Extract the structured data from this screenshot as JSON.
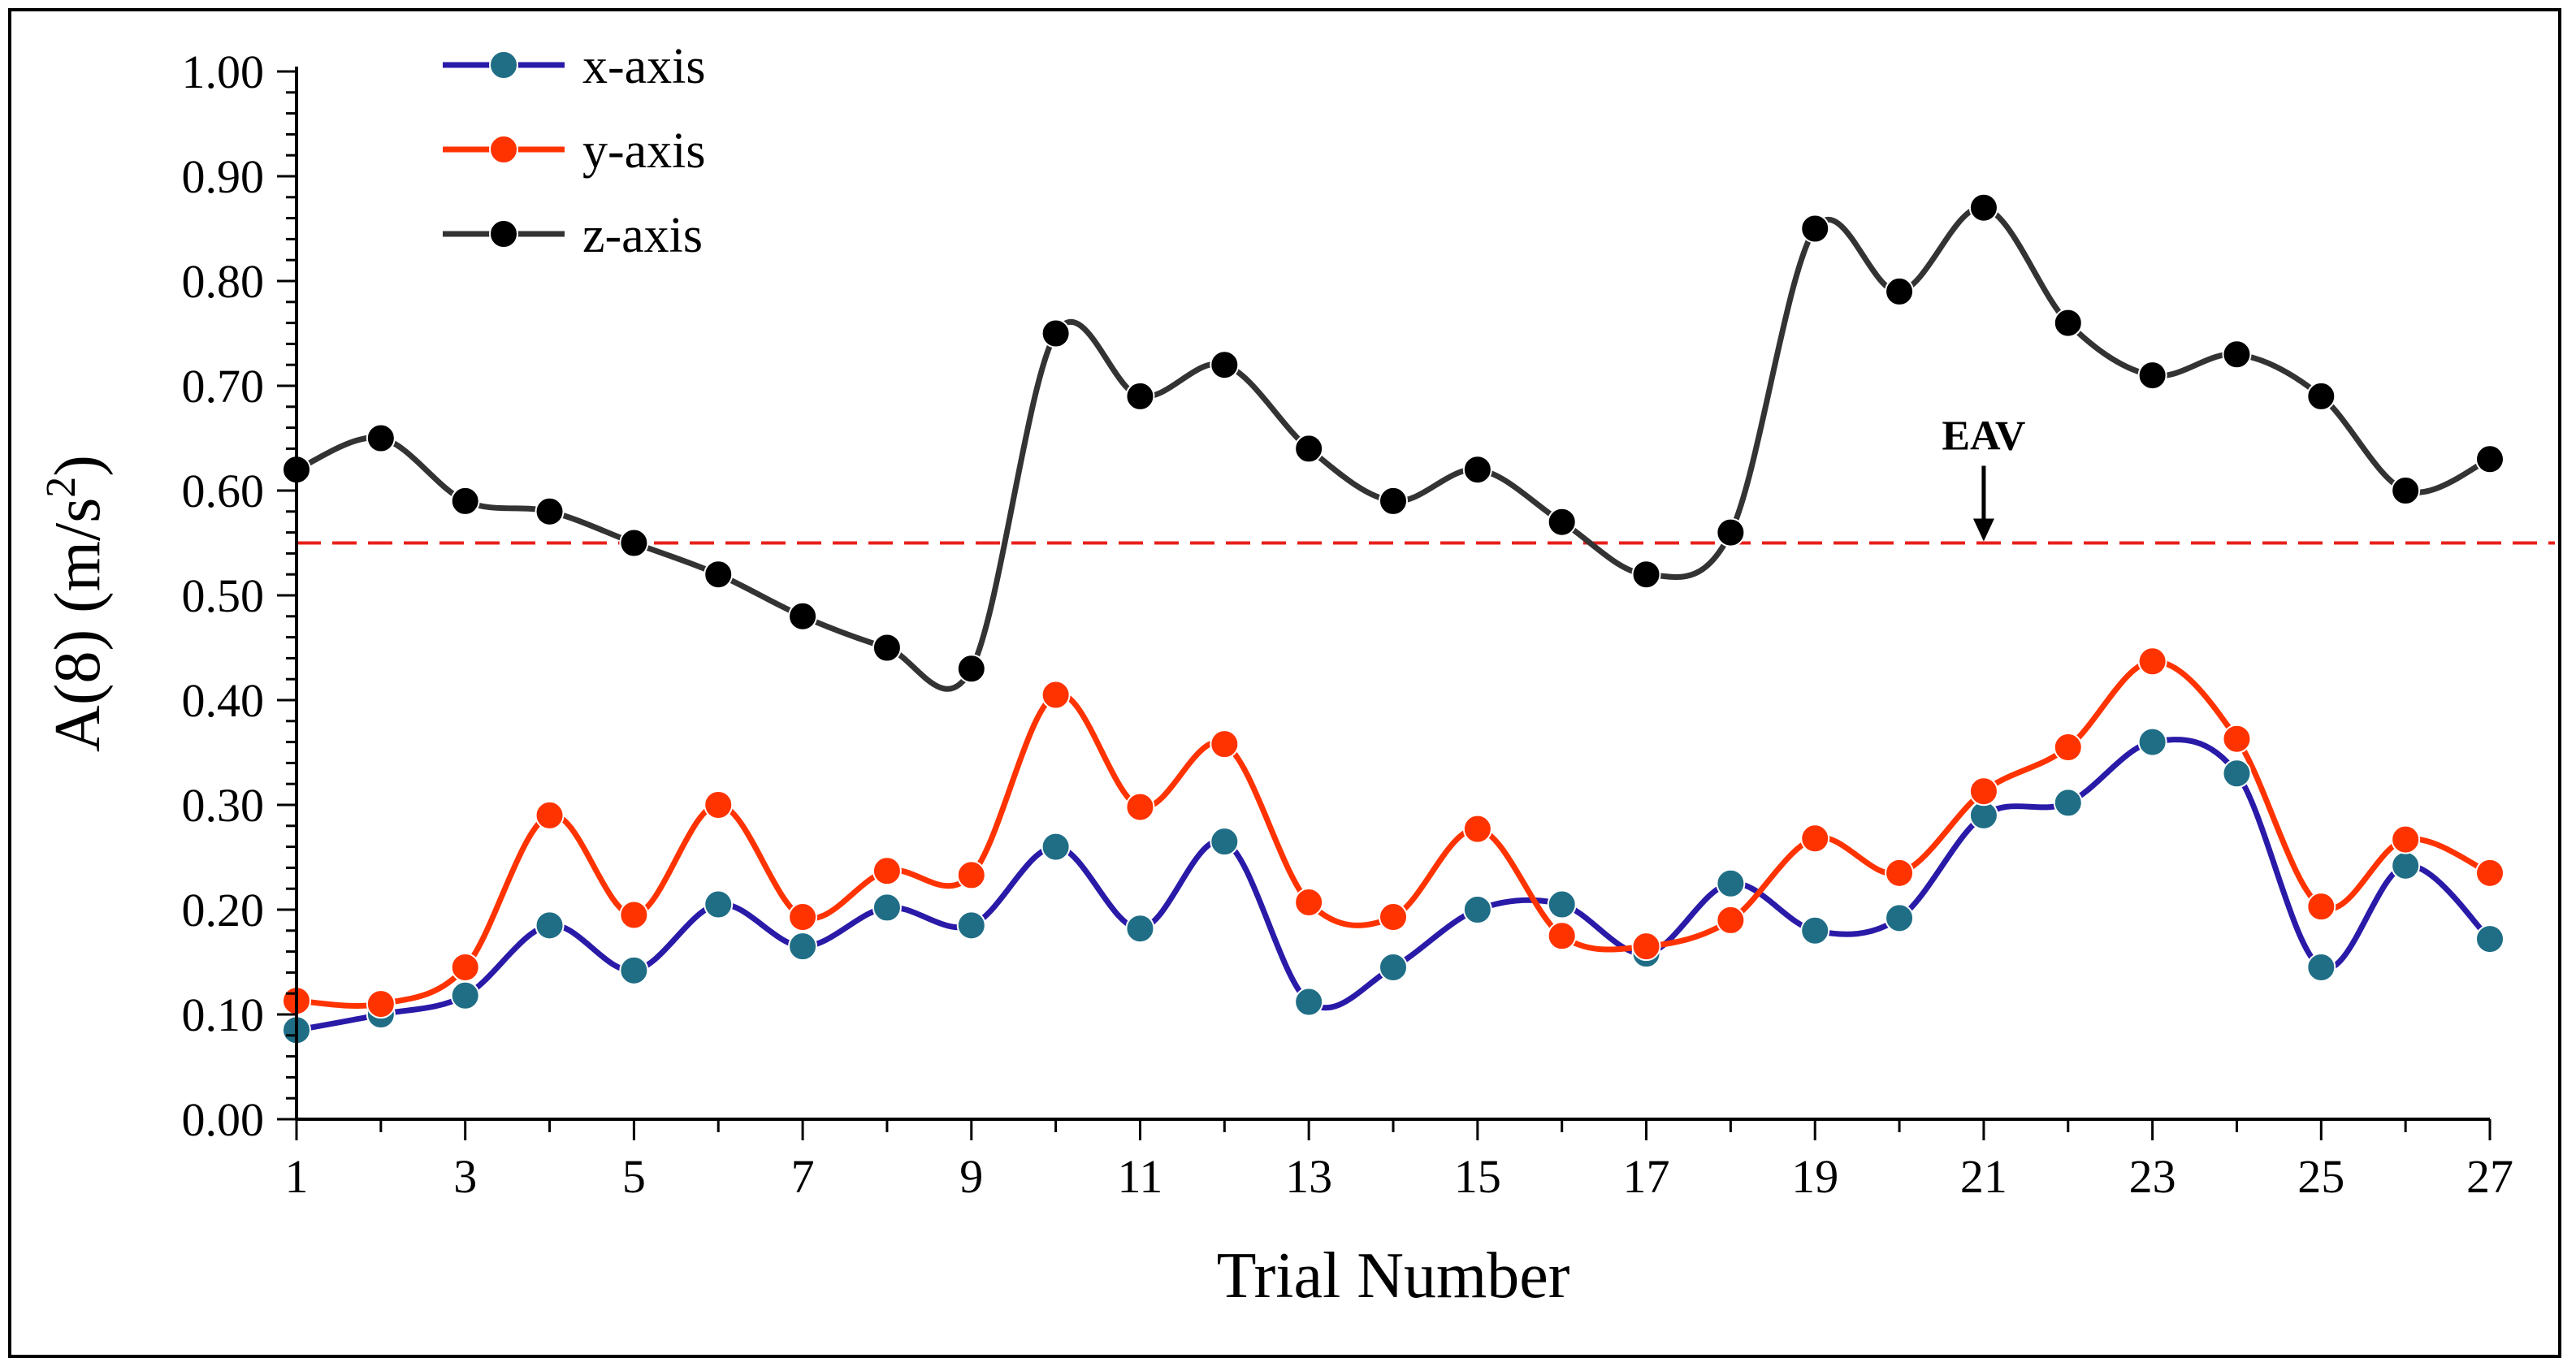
{
  "chart_data": {
    "type": "line",
    "title": "",
    "xlabel": "Trial Number",
    "ylabel": "A(8) (m/s",
    "ylabel_superscript": "2",
    "ylabel_close": ")",
    "xlim": [
      1,
      27
    ],
    "ylim": [
      0.0,
      1.0
    ],
    "x_ticks": [
      1,
      3,
      5,
      7,
      9,
      11,
      13,
      15,
      17,
      19,
      21,
      23,
      25,
      27
    ],
    "y_ticks": [
      "0.00",
      "0.10",
      "0.20",
      "0.30",
      "0.40",
      "0.50",
      "0.60",
      "0.70",
      "0.80",
      "0.90",
      "1.00"
    ],
    "grid": false,
    "legend_position": "top-left",
    "x": [
      1,
      2,
      3,
      4,
      5,
      6,
      7,
      8,
      9,
      10,
      11,
      12,
      13,
      14,
      15,
      16,
      17,
      18,
      19,
      20,
      21,
      22,
      23,
      24,
      25,
      26,
      27
    ],
    "series": [
      {
        "name": "x-axis",
        "line_color": "#2a1aa8",
        "marker_color": "#1f6e86",
        "values": [
          0.085,
          0.1,
          0.118,
          0.185,
          0.142,
          0.205,
          0.165,
          0.202,
          0.185,
          0.26,
          0.182,
          0.265,
          0.112,
          0.145,
          0.2,
          0.205,
          0.158,
          0.225,
          0.18,
          0.192,
          0.29,
          0.302,
          0.36,
          0.33,
          0.145,
          0.242,
          0.172
        ]
      },
      {
        "name": "y-axis",
        "line_color": "#ff3300",
        "marker_color": "#ff3300",
        "values": [
          0.113,
          0.11,
          0.145,
          0.29,
          0.195,
          0.3,
          0.193,
          0.237,
          0.233,
          0.405,
          0.298,
          0.358,
          0.207,
          0.193,
          0.277,
          0.175,
          0.165,
          0.19,
          0.268,
          0.235,
          0.313,
          0.355,
          0.437,
          0.363,
          0.203,
          0.267,
          0.235
        ]
      },
      {
        "name": "z-axis",
        "line_color": "#333333",
        "marker_color": "#000000",
        "values": [
          0.62,
          0.65,
          0.59,
          0.58,
          0.55,
          0.52,
          0.48,
          0.45,
          0.43,
          0.75,
          0.69,
          0.72,
          0.64,
          0.59,
          0.62,
          0.57,
          0.52,
          0.56,
          0.85,
          0.79,
          0.87,
          0.76,
          0.71,
          0.73,
          0.69,
          0.6,
          0.63
        ]
      }
    ],
    "reference_line": {
      "label": "EAV",
      "value": 0.55,
      "color": "#e8201a",
      "style": "dashed",
      "arrow_at_x": 21
    }
  }
}
